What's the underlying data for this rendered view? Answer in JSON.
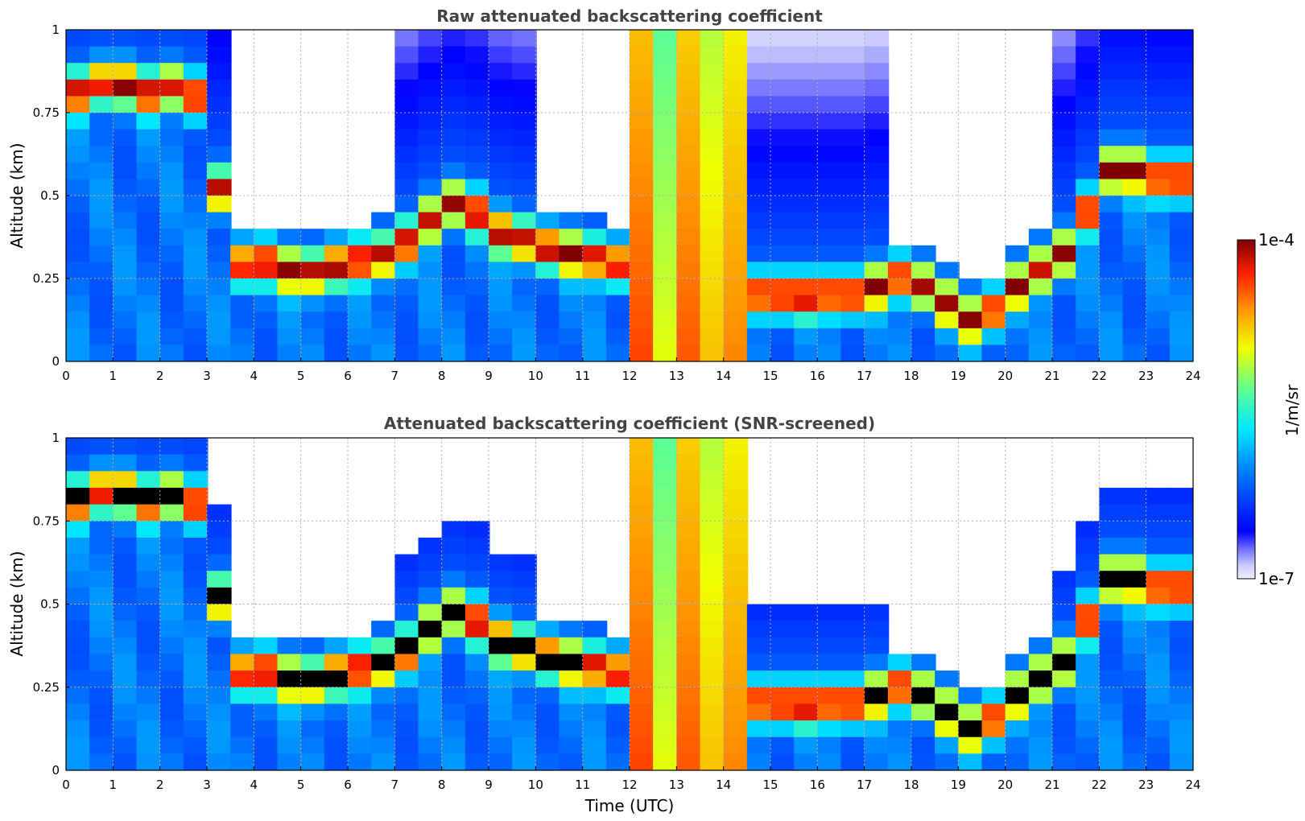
{
  "chart_data": [
    {
      "type": "heatmap",
      "title": "Raw attenuated backscattering coefficient",
      "xlabel": "",
      "ylabel": "Altitude (km)",
      "xlim": [
        0,
        24
      ],
      "ylim": [
        0,
        1
      ],
      "xticks": [
        "0",
        "1",
        "2",
        "3",
        "4",
        "5",
        "6",
        "7",
        "8",
        "9",
        "10",
        "11",
        "12",
        "13",
        "14",
        "15",
        "16",
        "17",
        "18",
        "19",
        "20",
        "21",
        "22",
        "23",
        "24"
      ],
      "yticks": [
        "0",
        "0.25",
        "0.5",
        "0.75",
        "1"
      ],
      "grid": true,
      "colorscale": "jet",
      "color_scale": "log",
      "value_range": [
        "1e-7",
        "1e-4"
      ],
      "features": {
        "boundary_layer_top_km": [
          [
            0,
            0.8
          ],
          [
            0.5,
            0.82
          ],
          [
            1,
            0.85
          ],
          [
            1.5,
            0.82
          ],
          [
            2,
            0.8
          ],
          [
            2.5,
            0.85
          ],
          [
            3,
            0.75
          ],
          [
            3.5,
            0.28
          ],
          [
            4,
            0.3
          ],
          [
            4.5,
            0.3
          ],
          [
            5,
            0.25
          ],
          [
            5.5,
            0.28
          ],
          [
            6,
            0.3
          ],
          [
            7,
            0.32
          ],
          [
            7.5,
            0.4
          ],
          [
            8,
            0.45
          ],
          [
            8.5,
            0.5
          ],
          [
            9,
            0.4
          ],
          [
            10,
            0.35
          ],
          [
            14.5,
            0.2
          ],
          [
            15,
            0.2
          ],
          [
            16,
            0.2
          ],
          [
            17,
            0.2
          ],
          [
            17.5,
            0.25
          ],
          [
            18,
            0.25
          ],
          [
            19,
            0.15
          ],
          [
            19.5,
            0.1
          ],
          [
            20,
            0.2
          ],
          [
            20.5,
            0.25
          ],
          [
            21,
            0.3
          ],
          [
            21.5,
            0.35
          ],
          [
            22,
            0.55
          ],
          [
            22.5,
            0.6
          ],
          [
            23,
            0.55
          ]
        ],
        "clear_air_gaps_h": [
          [
            3.3,
            7.0
          ],
          [
            10.2,
            11.8
          ],
          [
            17.5,
            21.0
          ]
        ],
        "precipitation_h": [
          [
            11.8,
            14.3
          ]
        ]
      }
    },
    {
      "type": "heatmap",
      "title": "Attenuated backscattering coefficient (SNR-screened)",
      "xlabel": "Time (UTC)",
      "ylabel": "Altitude (km)",
      "xlim": [
        0,
        24
      ],
      "ylim": [
        0,
        1
      ],
      "xticks": [
        "0",
        "1",
        "2",
        "3",
        "4",
        "5",
        "6",
        "7",
        "8",
        "9",
        "10",
        "11",
        "12",
        "13",
        "14",
        "15",
        "16",
        "17",
        "18",
        "19",
        "20",
        "21",
        "22",
        "23",
        "24"
      ],
      "yticks": [
        "0",
        "0.25",
        "0.5",
        "0.75",
        "1"
      ],
      "grid": true,
      "colorscale": "jet",
      "color_scale": "log",
      "value_range": [
        "1e-7",
        "1e-4"
      ],
      "over_range_color": "#000000",
      "masked_color": "#ffffff"
    }
  ],
  "colorbar": {
    "max_label": "1e-4",
    "min_label": "1e-7",
    "label": "1/m/sr"
  }
}
